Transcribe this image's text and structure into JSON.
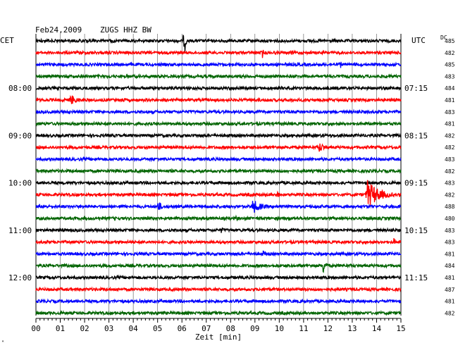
{
  "header": {
    "date": "Feb24,2009",
    "station": "ZUGS HHZ BW"
  },
  "chart_data": {
    "type": "line",
    "title": "Feb24,2009   ZUGS HHZ BW",
    "xlabel": "Zeit [min]",
    "xlim": [
      0,
      15
    ],
    "x_ticks": [
      "00",
      "01",
      "02",
      "03",
      "04",
      "05",
      "06",
      "07",
      "08",
      "09",
      "10",
      "11",
      "12",
      "13",
      "14",
      "15"
    ],
    "left_axis_label": "CET",
    "right_axis_label": "UTC",
    "dc_label": "DC",
    "left_hour_labels": [
      {
        "row": 4,
        "text": "08:00"
      },
      {
        "row": 8,
        "text": "09:00"
      },
      {
        "row": 12,
        "text": "10:00"
      },
      {
        "row": 16,
        "text": "11:00"
      },
      {
        "row": 20,
        "text": "12:00"
      }
    ],
    "right_hour_labels": [
      {
        "row": 4,
        "text": "07:15"
      },
      {
        "row": 8,
        "text": "08:15"
      },
      {
        "row": 12,
        "text": "09:15"
      },
      {
        "row": 16,
        "text": "10:15"
      },
      {
        "row": 20,
        "text": "11:15"
      }
    ],
    "trace_colors": [
      "#000000",
      "#ff0000",
      "#0000ff",
      "#006400"
    ],
    "dc_values": [
      "485",
      "482",
      "485",
      "483",
      "484",
      "481",
      "483",
      "481",
      "482",
      "482",
      "483",
      "482",
      "483",
      "482",
      "488",
      "480",
      "483",
      "483",
      "481",
      "484",
      "481",
      "487",
      "481",
      "482"
    ],
    "events": [
      {
        "row": 0,
        "t": 5.0,
        "amp": 6,
        "dur": 0.15
      },
      {
        "row": 0,
        "t": 6.1,
        "amp": 28,
        "dur": 0.1
      },
      {
        "row": 1,
        "t": 9.3,
        "amp": 10,
        "dur": 0.1
      },
      {
        "row": 1,
        "t": 10.5,
        "amp": 8,
        "dur": 0.1
      },
      {
        "row": 2,
        "t": 12.5,
        "amp": 9,
        "dur": 0.1
      },
      {
        "row": 5,
        "t": 1.4,
        "amp": 9,
        "dur": 0.7
      },
      {
        "row": 5,
        "t": 3.5,
        "amp": 4,
        "dur": 0.6
      },
      {
        "row": 9,
        "t": 11.6,
        "amp": 9,
        "dur": 0.6
      },
      {
        "row": 13,
        "t": 9.9,
        "amp": 8,
        "dur": 0.2
      },
      {
        "row": 13,
        "t": 13.6,
        "amp": 22,
        "dur": 1.1
      },
      {
        "row": 14,
        "t": 5.0,
        "amp": 10,
        "dur": 0.35
      },
      {
        "row": 14,
        "t": 8.9,
        "amp": 11,
        "dur": 0.8
      },
      {
        "row": 15,
        "t": 8.2,
        "amp": 5,
        "dur": 0.3
      },
      {
        "row": 16,
        "t": 7.6,
        "amp": 5,
        "dur": 0.3
      },
      {
        "row": 17,
        "t": 14.7,
        "amp": 6,
        "dur": 0.3
      },
      {
        "row": 18,
        "t": 9.3,
        "amp": 6,
        "dur": 0.35
      },
      {
        "row": 19,
        "t": 11.8,
        "amp": 12,
        "dur": 0.3
      }
    ]
  },
  "footer_mark": "ᴬ"
}
